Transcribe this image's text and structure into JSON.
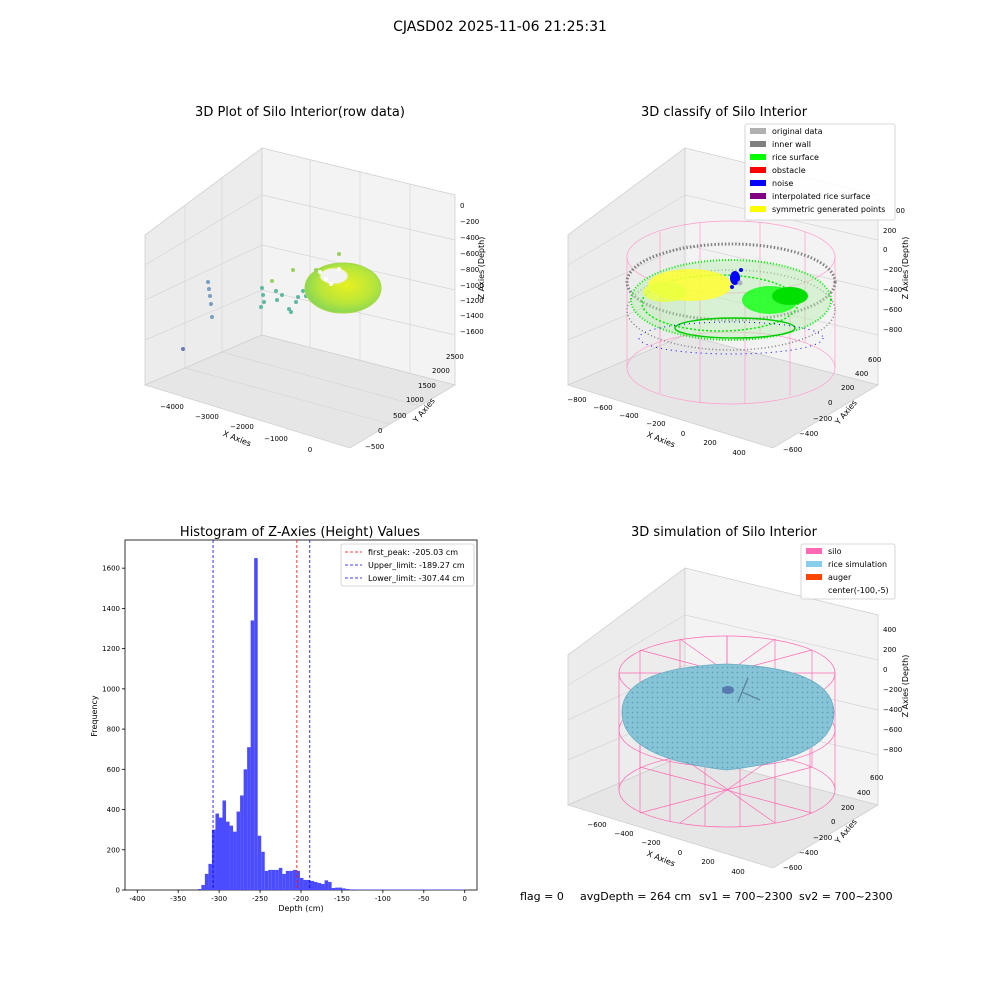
{
  "suptitle": "CJASD02 2025-11-06 21:25:31",
  "status_line": {
    "flag": "flag = 0",
    "avg_depth": "avgDepth = 264 cm",
    "sv1": "sv1 = 700~2300",
    "sv2": "sv2 = 700~2300"
  },
  "chart_data": [
    {
      "type": "scatter",
      "title": "3D Plot of Silo Interior(row data)",
      "xlabel": "X Axies",
      "ylabel": "Y Axies",
      "zlabel": "Z Axies (Depth)",
      "x_ticks": [
        "−4000",
        "−3000",
        "−2000",
        "−1000",
        "0"
      ],
      "y_ticks": [
        "−500",
        "0",
        "500",
        "1000",
        "1500",
        "2000",
        "2500"
      ],
      "z_ticks": [
        "0",
        "−200",
        "−400",
        "−600",
        "−800",
        "−1000",
        "−1200",
        "−1400",
        "−1600"
      ]
    },
    {
      "type": "scatter",
      "title": "3D classify of Silo Interior",
      "xlabel": "X Axies",
      "ylabel": "Y Axies",
      "zlabel": "Z Axies (Depth)",
      "x_ticks": [
        "−800",
        "−600",
        "−400",
        "−200",
        "0",
        "200",
        "400"
      ],
      "y_ticks": [
        "−600",
        "−400",
        "−200",
        "0",
        "200",
        "400",
        "600"
      ],
      "z_ticks": [
        "200",
        "0",
        "−200",
        "−400",
        "−600",
        "−800"
      ],
      "z_tick_partial": "00",
      "legend": [
        {
          "label": "original data",
          "color": "#b0b0b0"
        },
        {
          "label": "inner wall",
          "color": "#808080"
        },
        {
          "label": "rice surface",
          "color": "#00ff00"
        },
        {
          "label": "obstacle",
          "color": "#ff0000"
        },
        {
          "label": "noise",
          "color": "#0000ff"
        },
        {
          "label": "interpolated rice surface",
          "color": "#800080"
        },
        {
          "label": "symmetric generated points",
          "color": "#ffff00"
        }
      ]
    },
    {
      "type": "bar",
      "title": "Histogram of Z-Axies (Height) Values",
      "xlabel": "Depth (cm)",
      "ylabel": "Frequency",
      "xlim": [
        -415,
        15
      ],
      "ylim": [
        0,
        1740
      ],
      "x_ticks": [
        -400,
        -350,
        -300,
        -250,
        -200,
        -150,
        -100,
        -50,
        0
      ],
      "y_ticks": [
        0,
        200,
        400,
        600,
        800,
        1000,
        1200,
        1400,
        1600
      ],
      "bin_width": 4.3,
      "bin_starts": [
        -326,
        -321.7,
        -317.4,
        -313.1,
        -308.8,
        -304.5,
        -300.2,
        -295.9,
        -291.6,
        -287.3,
        -283.0,
        -278.7,
        -274.4,
        -270.1,
        -265.8,
        -261.5,
        -257.2,
        -252.9,
        -248.6,
        -244.3,
        -240.0,
        -235.7,
        -231.4,
        -227.1,
        -222.8,
        -218.5,
        -214.2,
        -209.9,
        -205.6,
        -201.3,
        -197.0,
        -192.7,
        -188.4,
        -184.1,
        -179.8,
        -175.5,
        -171.2,
        -166.9,
        -162.6,
        -158.3,
        -154.0,
        -149.7,
        -145.4,
        -141.1,
        -136.8,
        -132.5,
        -128.2,
        -123.9,
        -119.6,
        -115.3,
        -111.0,
        -106.7,
        -102.4,
        -98.1,
        -93.8,
        -89.5,
        -85.2,
        -80.9,
        -76.6,
        -72.3,
        -68.0,
        -63.7,
        -59.4,
        -55.1,
        -50.8,
        -46.5,
        -42.2,
        -37.9,
        -33.6,
        -29.3,
        -25.0,
        -20.7,
        -16.4,
        -12.1,
        -7.8,
        -3.5
      ],
      "values": [
        5,
        25,
        80,
        130,
        300,
        380,
        360,
        445,
        340,
        320,
        290,
        390,
        470,
        600,
        710,
        1340,
        1650,
        270,
        190,
        95,
        100,
        100,
        100,
        110,
        80,
        95,
        95,
        100,
        95,
        60,
        50,
        50,
        45,
        40,
        35,
        30,
        48,
        40,
        10,
        12,
        12,
        8,
        5,
        3,
        3,
        2,
        2,
        2,
        2,
        2,
        2,
        2,
        2,
        2,
        2,
        2,
        2,
        2,
        2,
        2,
        2,
        2,
        2,
        2,
        2,
        2,
        2,
        2,
        2,
        2,
        2,
        2,
        2,
        2,
        2,
        2
      ],
      "bar_color": "#4b4bff",
      "vlines": [
        {
          "label": "first_peak: -205.03 cm",
          "x": -205.03,
          "color": "#ff0000"
        },
        {
          "label": "Upper_limit: -189.27 cm",
          "x": -189.27,
          "color": "#0000ff"
        },
        {
          "label": "Lower_limit: -307.44 cm",
          "x": -307.44,
          "color": "#0000ff"
        }
      ]
    },
    {
      "type": "scatter",
      "title": "3D simulation of Silo Interior",
      "xlabel": "X Axies",
      "ylabel": "Y Axies",
      "zlabel": "Z Axies (Depth)",
      "x_ticks": [
        "−600",
        "−400",
        "−200",
        "0",
        "200",
        "400"
      ],
      "y_ticks": [
        "−600",
        "−400",
        "−200",
        "0",
        "200",
        "400",
        "600"
      ],
      "z_ticks": [
        "400",
        "200",
        "0",
        "−200",
        "−400",
        "−600",
        "−800"
      ],
      "legend": [
        {
          "label": "silo",
          "color": "#ff69b4"
        },
        {
          "label": "rice simulation",
          "color": "#87ceeb"
        },
        {
          "label": "auger",
          "color": "#ff4500"
        },
        {
          "label": "center(-100,-5)",
          "color": ""
        }
      ]
    }
  ]
}
